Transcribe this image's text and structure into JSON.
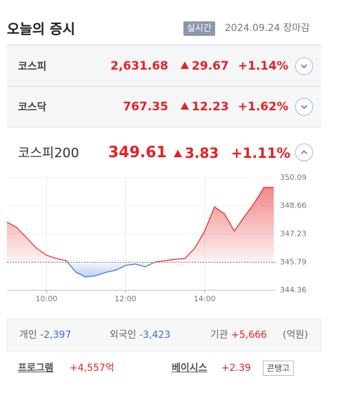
{
  "header": {
    "title": "오늘의 증시",
    "badge": "실시간",
    "date": "2024.09.24",
    "status": "장마감"
  },
  "indices": [
    {
      "name": "코스피",
      "value": "2,631.68",
      "change": "29.67",
      "rate": "+1.14%"
    },
    {
      "name": "코스닥",
      "value": "767.35",
      "change": "12.23",
      "rate": "+1.62%"
    }
  ],
  "featured": {
    "name": "코스피200",
    "value": "349.61",
    "change": "3.83",
    "rate": "+1.11%"
  },
  "chart_data": {
    "type": "line",
    "x": [
      9,
      9.25,
      9.5,
      9.75,
      10,
      10.25,
      10.5,
      10.75,
      11,
      11.25,
      11.5,
      11.75,
      12,
      12.25,
      12.5,
      12.75,
      13,
      13.25,
      13.5,
      13.75,
      14,
      14.25,
      14.5,
      14.75,
      15,
      15.25,
      15.5,
      15.75
    ],
    "values": [
      347.84,
      347.56,
      347.03,
      346.5,
      346.15,
      345.98,
      345.87,
      345.27,
      345.03,
      345.1,
      345.27,
      345.38,
      345.63,
      345.7,
      345.56,
      345.8,
      345.87,
      345.94,
      345.98,
      346.5,
      347.38,
      348.61,
      348.26,
      347.38,
      348.09,
      348.79,
      349.6,
      349.61
    ],
    "xlim": [
      9,
      15.8
    ],
    "ylim": [
      344.36,
      350.09
    ],
    "xticks": [
      {
        "value": 10,
        "label": "10:00"
      },
      {
        "value": 12,
        "label": "12:00"
      },
      {
        "value": 14,
        "label": "14:00"
      }
    ],
    "yticks": [
      350.09,
      348.66,
      347.23,
      345.79,
      344.36
    ],
    "reference_line": 345.79,
    "up_color": "#e52222",
    "down_color": "#2e6fd8",
    "grid": true
  },
  "investors": {
    "items": [
      {
        "name": "개인",
        "value": "-2,397"
      },
      {
        "name": "외국인",
        "value": "-3,423"
      },
      {
        "name": "기관",
        "value": "+5,666"
      }
    ],
    "unit": "(억원)"
  },
  "program": {
    "label": "프로그램",
    "value": "+4,557억"
  },
  "basis": {
    "label": "베이시스",
    "value": "+2.39",
    "state": "콘탱고"
  }
}
